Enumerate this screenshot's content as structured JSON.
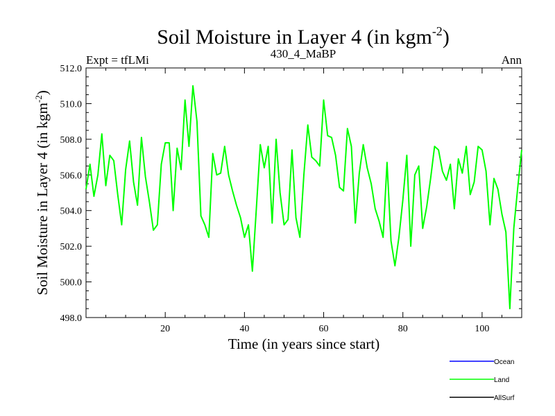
{
  "chart_data": {
    "type": "line",
    "title_main": "Soil Moisture in Layer 4 (in kgm",
    "title_sup": "-2",
    "title_close": ")",
    "subtitle_left": "Expt = tfLMi",
    "subtitle_center": "430_4_MaBP",
    "subtitle_right": "Ann",
    "xlabel": "Time (in years since start)",
    "ylabel_main": "Soil Moisture in Layer 4 (in kgm",
    "ylabel_sup": "-2",
    "ylabel_close": ")",
    "xlim": [
      0,
      110
    ],
    "ylim": [
      498.0,
      512.0
    ],
    "x_ticks": [
      20,
      40,
      60,
      80,
      100
    ],
    "x_tick_labels": [
      "20",
      "40",
      "60",
      "80",
      "100"
    ],
    "y_ticks": [
      498.0,
      500.0,
      502.0,
      504.0,
      506.0,
      508.0,
      510.0,
      512.0
    ],
    "y_tick_labels": [
      "498.0",
      "500.0",
      "502.0",
      "504.0",
      "506.0",
      "508.0",
      "510.0",
      "512.0"
    ],
    "legend": [
      {
        "name": "Ocean",
        "color": "#0000ff"
      },
      {
        "name": "Land",
        "color": "#00ff00"
      },
      {
        "name": "AllSurf",
        "color": "#000000"
      }
    ],
    "series": [
      {
        "name": "Land",
        "color": "#00ff00",
        "x": [
          0,
          1,
          2,
          3,
          4,
          5,
          6,
          7,
          8,
          9,
          10,
          11,
          12,
          13,
          14,
          15,
          16,
          17,
          18,
          19,
          20,
          21,
          22,
          23,
          24,
          25,
          26,
          27,
          28,
          29,
          30,
          31,
          32,
          33,
          34,
          35,
          36,
          37,
          38,
          39,
          40,
          41,
          42,
          43,
          44,
          45,
          46,
          47,
          48,
          49,
          50,
          51,
          52,
          53,
          54,
          55,
          56,
          57,
          58,
          59,
          60,
          61,
          62,
          63,
          64,
          65,
          66,
          67,
          68,
          69,
          70,
          71,
          72,
          73,
          74,
          75,
          76,
          77,
          78,
          79,
          80,
          81,
          82,
          83,
          84,
          85,
          86,
          87,
          88,
          89,
          90,
          91,
          92,
          93,
          94,
          95,
          96,
          97,
          98,
          99,
          100,
          101,
          102,
          103,
          104,
          105,
          106,
          107,
          108,
          109,
          110
        ],
        "values": [
          505.2,
          506.6,
          504.8,
          506.0,
          508.3,
          505.4,
          507.1,
          506.8,
          504.9,
          503.2,
          506.3,
          507.9,
          505.6,
          504.3,
          508.1,
          505.9,
          504.5,
          502.9,
          503.2,
          506.6,
          507.8,
          507.8,
          504.0,
          507.5,
          506.3,
          510.2,
          507.6,
          511.0,
          509.0,
          503.7,
          503.2,
          502.5,
          507.2,
          506.0,
          506.1,
          507.6,
          506.0,
          505.1,
          504.3,
          503.6,
          502.5,
          503.2,
          500.6,
          504.1,
          507.7,
          506.4,
          507.6,
          503.3,
          508.0,
          505.0,
          503.2,
          503.5,
          507.4,
          503.6,
          502.5,
          506.0,
          508.8,
          507.0,
          506.8,
          506.5,
          510.2,
          508.2,
          508.1,
          507.1,
          505.3,
          505.1,
          508.6,
          507.6,
          503.3,
          506.1,
          507.7,
          506.4,
          505.5,
          504.1,
          503.4,
          502.5,
          506.7,
          502.3,
          500.9,
          502.5,
          504.6,
          507.1,
          502.0,
          506.0,
          506.5,
          503.0,
          504.2,
          505.8,
          507.6,
          507.4,
          506.2,
          505.7,
          506.6,
          504.1,
          506.9,
          506.1,
          507.6,
          504.9,
          505.6,
          507.6,
          507.4,
          506.2,
          503.2,
          505.8,
          505.2,
          503.8,
          502.8,
          498.5,
          503.0,
          505.3,
          507.4
        ]
      }
    ]
  }
}
